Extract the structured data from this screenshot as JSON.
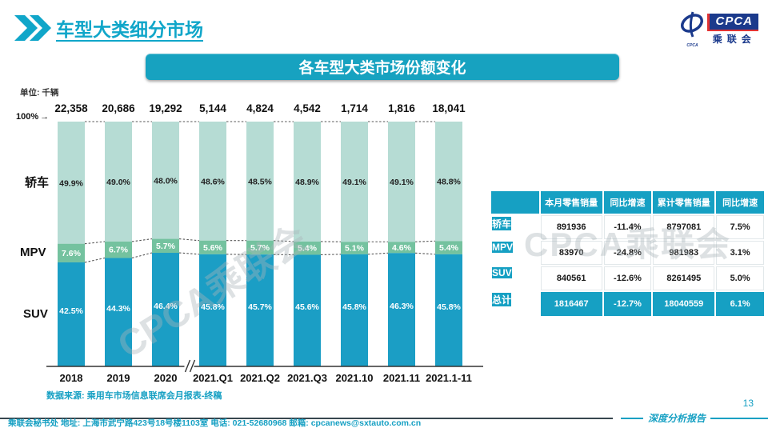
{
  "header": {
    "title": "车型大类细分市场",
    "logo": {
      "cpca": "CPCA",
      "sub": "乘联会",
      "icon_text": "CPCA"
    }
  },
  "banner": {
    "title": "各车型大类市场份额变化"
  },
  "chart": {
    "unit": "单位: 千辆",
    "top_axis_label": "100%",
    "arrow": "→",
    "row_labels": [
      "轿车",
      "MPV",
      "SUV"
    ]
  },
  "chart_data": {
    "type": "bar",
    "stacked": true,
    "title": "各车型大类市场份额变化",
    "unit": "单位: 千辆",
    "categories": [
      "2018",
      "2019",
      "2020",
      "2021.Q1",
      "2021.Q2",
      "2021.Q3",
      "2021.10",
      "2021.11",
      "2021.1-11"
    ],
    "totals": [
      "22,358",
      "20,686",
      "19,292",
      "5,144",
      "4,824",
      "4,542",
      "1,714",
      "1,816",
      "18,041"
    ],
    "series": [
      {
        "name": "SUV",
        "color": "#1b9ec5",
        "values": [
          42.5,
          44.3,
          46.4,
          45.8,
          45.7,
          45.6,
          45.8,
          46.3,
          45.8
        ]
      },
      {
        "name": "MPV",
        "color": "#74c29f",
        "values": [
          7.6,
          6.7,
          5.7,
          5.6,
          5.7,
          5.4,
          5.1,
          4.6,
          5.4
        ]
      },
      {
        "name": "轿车",
        "color": "#b6dcd4",
        "values": [
          49.9,
          49.0,
          48.0,
          48.6,
          48.5,
          48.9,
          49.1,
          49.1,
          48.8
        ]
      }
    ],
    "ylim": [
      0,
      100
    ],
    "axis_break_after_index": 2,
    "legend_position": "left-row-labels",
    "grid": false
  },
  "table": {
    "headers": [
      "",
      "本月零售销量",
      "同比增速",
      "累计零售销量",
      "同比增速"
    ],
    "rows": [
      {
        "label": "轿车",
        "values": [
          "891936",
          "-11.4%",
          "8797081",
          "7.5%"
        ],
        "total": false
      },
      {
        "label": "MPV",
        "values": [
          "83970",
          "-24.8%",
          "981983",
          "3.1%"
        ],
        "total": false
      },
      {
        "label": "SUV",
        "values": [
          "840561",
          "-12.6%",
          "8261495",
          "5.0%"
        ],
        "total": false
      },
      {
        "label": "总计",
        "values": [
          "1816467",
          "-12.7%",
          "18040559",
          "6.1%"
        ],
        "total": true
      }
    ]
  },
  "watermark": "CPCA乘联会",
  "source": "数据来源: 乘用车市场信息联席会月报表-终稿",
  "footer": {
    "contact": "乘联会秘书处   地址: 上海市武宁路423号18号楼1103室   电话: 021-52680968   邮箱: cpcanews@sxtauto.com.cn",
    "report_label": "深度分析报告",
    "page": "13"
  },
  "colors": {
    "accent_teal": "#16a0c3",
    "bar_suv": "#1b9ec5",
    "bar_mpv": "#74c29f",
    "bar_sedan": "#b6dcd4",
    "logo_navy": "#1b3a8c",
    "logo_red": "#e23333",
    "footer_rule_dark": "#37474f"
  }
}
